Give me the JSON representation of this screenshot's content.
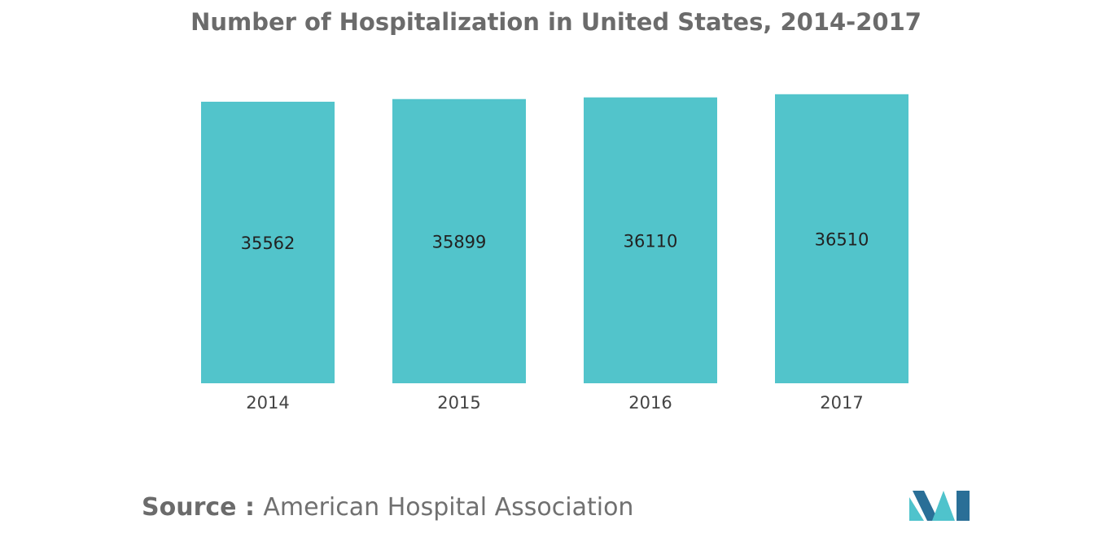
{
  "source": {
    "prefix": "Source : ",
    "text": "American Hospital Association"
  },
  "colors": {
    "bar": "#52c4cb",
    "logo_dark": "#2a6f97",
    "logo_light": "#4fc3cc"
  },
  "logo": {
    "icon": "mi-logo-icon"
  },
  "chart_data": {
    "type": "bar",
    "title": "Number of Hospitalization in United States, 2014-2017",
    "xlabel": "",
    "ylabel": "",
    "categories": [
      "2014",
      "2015",
      "2016",
      "2017"
    ],
    "values": [
      35562,
      35899,
      36110,
      36510
    ],
    "data_labels": [
      "35562",
      "35899",
      "36110",
      "36510"
    ],
    "ylim": [
      0,
      36900
    ],
    "grid": false,
    "legend": "none"
  }
}
